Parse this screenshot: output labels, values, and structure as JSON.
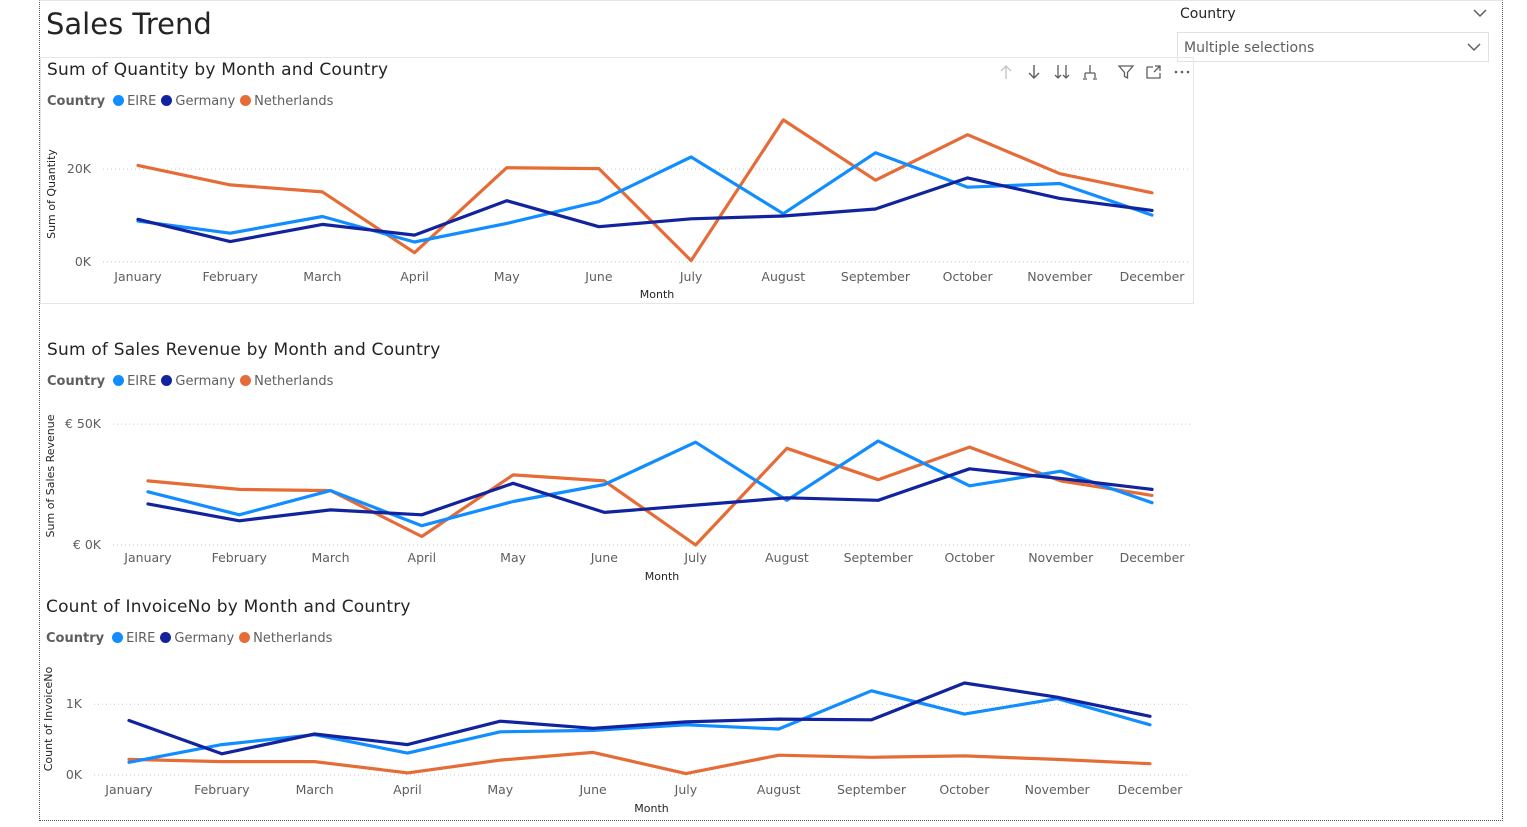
{
  "page": {
    "title": "Sales Trend"
  },
  "slicer": {
    "label": "Country",
    "value": "Multiple selections"
  },
  "legend_title": "Country",
  "colors": {
    "EIRE": "#118dff",
    "Germany": "#12239e",
    "Netherlands": "#e66c37"
  },
  "visual_header_icons": [
    "arrow-up-icon",
    "arrow-down-icon",
    "double-arrow-down-icon",
    "expand-hierarchy-icon",
    "filter-icon",
    "focus-mode-icon",
    "more-options-icon"
  ],
  "chart_data": [
    {
      "type": "line",
      "title": "Sum of Quantity by Month and Country",
      "xlabel": "Month",
      "ylabel": "Sum of Quantity",
      "categories": [
        "January",
        "February",
        "March",
        "April",
        "May",
        "June",
        "July",
        "August",
        "September",
        "October",
        "November",
        "December"
      ],
      "yticks": [
        {
          "value": 0,
          "label": "0K"
        },
        {
          "value": 20000,
          "label": "20K"
        }
      ],
      "ylim": [
        0,
        31000
      ],
      "grid": true,
      "legend": "top-left",
      "series": [
        {
          "name": "EIRE",
          "values": [
            8800,
            6200,
            9800,
            4300,
            8300,
            13000,
            22600,
            10400,
            23500,
            16100,
            16900,
            10100
          ]
        },
        {
          "name": "Germany",
          "values": [
            9200,
            4400,
            8100,
            5800,
            13200,
            7600,
            9300,
            9900,
            11400,
            18100,
            13700,
            11100
          ]
        },
        {
          "name": "Netherlands",
          "values": [
            20800,
            16600,
            15100,
            2000,
            20300,
            20100,
            300,
            30600,
            17600,
            27400,
            19000,
            14900
          ]
        }
      ]
    },
    {
      "type": "line",
      "title": "Sum of Sales Revenue by Month and Country",
      "xlabel": "Month",
      "ylabel": "Sum of Sales Revenue",
      "categories": [
        "January",
        "February",
        "March",
        "April",
        "May",
        "June",
        "July",
        "August",
        "September",
        "October",
        "November",
        "December"
      ],
      "yticks": [
        {
          "value": 0,
          "label": "€ 0K"
        },
        {
          "value": 50000,
          "label": "€ 50K"
        }
      ],
      "ylim": [
        0,
        55000
      ],
      "grid": true,
      "legend": "top-left",
      "series": [
        {
          "name": "EIRE",
          "values": [
            22000,
            12500,
            22500,
            8000,
            18000,
            25000,
            42500,
            18500,
            43000,
            24500,
            30500,
            17500
          ]
        },
        {
          "name": "Germany",
          "values": [
            17000,
            10000,
            14500,
            12500,
            25500,
            13500,
            16500,
            19500,
            18500,
            31500,
            27500,
            23000
          ]
        },
        {
          "name": "Netherlands",
          "values": [
            26500,
            23000,
            22500,
            3500,
            29000,
            26500,
            0,
            40000,
            27000,
            40500,
            26500,
            20500
          ]
        }
      ]
    },
    {
      "type": "line",
      "title": "Count of InvoiceNo by Month and Country",
      "xlabel": "Month",
      "ylabel": "Count of InvoiceNo",
      "categories": [
        "January",
        "February",
        "March",
        "April",
        "May",
        "June",
        "July",
        "August",
        "September",
        "October",
        "November",
        "December"
      ],
      "yticks": [
        {
          "value": 0,
          "label": "0K"
        },
        {
          "value": 1000,
          "label": "1K"
        }
      ],
      "ylim": [
        0,
        1300
      ],
      "grid": true,
      "legend": "top-left",
      "series": [
        {
          "name": "EIRE",
          "values": [
            180,
            430,
            570,
            310,
            610,
            630,
            710,
            650,
            1190,
            860,
            1080,
            710
          ]
        },
        {
          "name": "Germany",
          "values": [
            770,
            300,
            580,
            430,
            760,
            660,
            750,
            790,
            780,
            1300,
            1100,
            830
          ]
        },
        {
          "name": "Netherlands",
          "values": [
            220,
            190,
            190,
            30,
            210,
            320,
            20,
            280,
            250,
            270,
            220,
            160
          ]
        }
      ]
    }
  ]
}
